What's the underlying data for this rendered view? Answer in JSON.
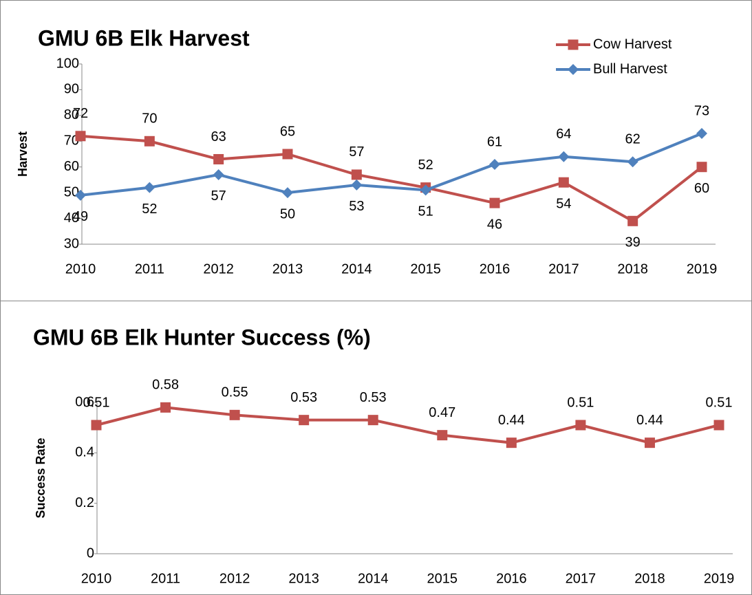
{
  "chart_data": [
    {
      "type": "line",
      "title": "GMU 6B Elk Harvest",
      "y_label": "Harvest",
      "categories": [
        "2010",
        "2011",
        "2012",
        "2013",
        "2014",
        "2015",
        "2016",
        "2017",
        "2018",
        "2019"
      ],
      "series": [
        {
          "name": "Cow Harvest",
          "color": "#c0504d",
          "marker": "square",
          "values": [
            72,
            70,
            63,
            65,
            57,
            52,
            46,
            54,
            39,
            60
          ]
        },
        {
          "name": "Bull Harvest",
          "color": "#4f81bd",
          "marker": "diamond",
          "values": [
            49,
            52,
            57,
            50,
            53,
            51,
            61,
            64,
            62,
            73
          ]
        }
      ],
      "ylim": [
        30,
        100
      ],
      "yticks": [
        30,
        40,
        50,
        60,
        70,
        80,
        90,
        100
      ],
      "grid": false,
      "legend": "top-right",
      "data_labels": true
    },
    {
      "type": "line",
      "title": "GMU 6B Elk Hunter Success (%)",
      "y_label": "Success Rate",
      "categories": [
        "2010",
        "2011",
        "2012",
        "2013",
        "2014",
        "2015",
        "2016",
        "2017",
        "2018",
        "2019"
      ],
      "series": [
        {
          "color": "#c0504d",
          "marker": "square",
          "values": [
            0.51,
            0.58,
            0.55,
            0.53,
            0.53,
            0.47,
            0.44,
            0.51,
            0.44,
            0.51
          ]
        }
      ],
      "ylim": [
        0,
        0.6
      ],
      "yticks": [
        0,
        0.2,
        0.4,
        0.6
      ],
      "grid": false,
      "data_labels": true
    }
  ]
}
